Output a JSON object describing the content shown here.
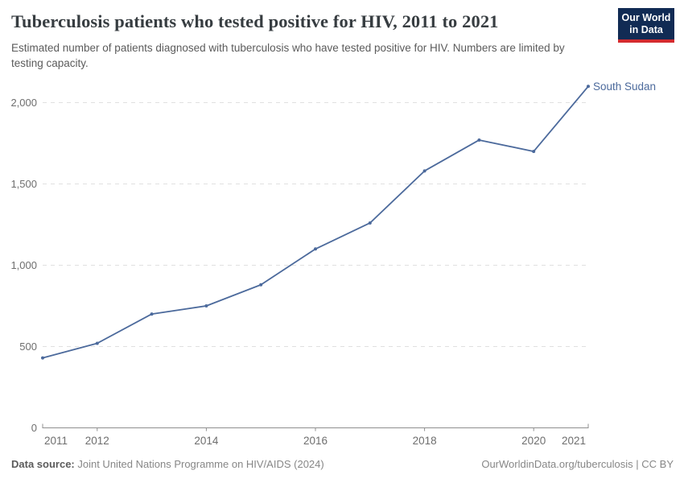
{
  "header": {
    "title": "Tuberculosis patients who tested positive for HIV, 2011 to 2021",
    "subtitle": "Estimated number of patients diagnosed with tuberculosis who have tested positive for HIV. Numbers are limited by testing capacity.",
    "logo": {
      "line1": "Our World",
      "line2": "in Data"
    }
  },
  "chart_data": {
    "type": "line",
    "title": "Tuberculosis patients who tested positive for HIV, 2011 to 2021",
    "xlabel": "",
    "ylabel": "",
    "x": [
      2011,
      2012,
      2013,
      2014,
      2015,
      2016,
      2017,
      2018,
      2019,
      2020,
      2021
    ],
    "series": [
      {
        "name": "South Sudan",
        "color": "#4C6A9C",
        "values": [
          430,
          520,
          700,
          750,
          880,
          1100,
          1260,
          1580,
          1770,
          1700,
          2100
        ]
      }
    ],
    "end_label": "South Sudan",
    "x_tick_years": [
      2011,
      2012,
      2014,
      2016,
      2018,
      2020,
      2021
    ],
    "y_ticks": [
      0,
      500,
      1000,
      1500,
      2000
    ],
    "y_tick_labels": [
      "0",
      "500",
      "1,000",
      "1,500",
      "2,000"
    ],
    "ylim": [
      0,
      2100
    ],
    "xlim": [
      2011,
      2021
    ],
    "grid": "horizontal-dashed",
    "legend_position": "end-of-line"
  },
  "footer": {
    "source_label": "Data source:",
    "source_text": " Joint United Nations Programme on HIV/AIDS (2024)",
    "link_text": "OurWorldinData.org/tuberculosis | CC BY"
  },
  "colors": {
    "series_blue": "#4C6A9C",
    "grid": "#e0e0e0",
    "axis": "#8f8f8f",
    "tick_label": "#6e6e6e",
    "logo_navy": "#112b54",
    "logo_red": "#d42b2f"
  }
}
